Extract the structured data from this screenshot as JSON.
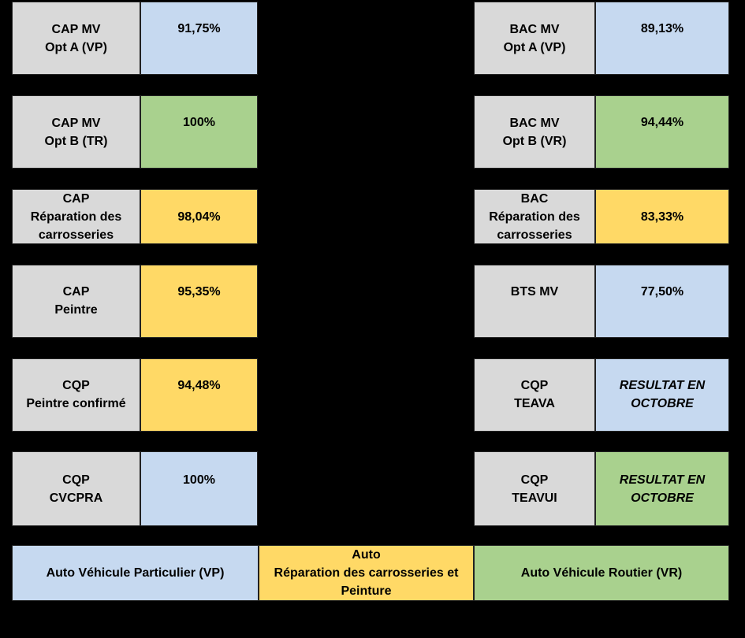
{
  "colors": {
    "vp": "#c6d9f0",
    "vr": "#a9d18e",
    "carrosserie": "#ffd966",
    "label": "#d9d9d9"
  },
  "left": [
    {
      "line1": "CAP MV",
      "line2": "Opt A (VP)",
      "line3": "",
      "value": "91,75%",
      "color": "vp"
    },
    {
      "line1": "CAP MV",
      "line2": "Opt B (TR)",
      "line3": "",
      "value": "100%",
      "color": "vr"
    },
    {
      "line1": "CAP",
      "line2": "Réparation des",
      "line3": "carrosseries",
      "value": "98,04%",
      "color": "carrosserie"
    },
    {
      "line1": "CAP",
      "line2": "Peintre",
      "line3": "",
      "value": "95,35%",
      "color": "carrosserie"
    },
    {
      "line1": "CQP",
      "line2": "Peintre confirmé",
      "line3": "",
      "value": "94,48%",
      "color": "carrosserie"
    },
    {
      "line1": "CQP",
      "line2": "CVCPRA",
      "line3": "",
      "value": "100%",
      "color": "vp"
    }
  ],
  "right": [
    {
      "line1": "BAC MV",
      "line2": "Opt A (VP)",
      "line3": "",
      "value": "89,13%",
      "value2": "",
      "color": "vp"
    },
    {
      "line1": "BAC MV",
      "line2": "Opt B (VR)",
      "line3": "",
      "value": "94,44%",
      "value2": "",
      "color": "vr"
    },
    {
      "line1": "BAC",
      "line2": "Réparation des",
      "line3": "carrosseries",
      "value": "83,33%",
      "value2": "",
      "color": "carrosserie"
    },
    {
      "line1": "BTS MV",
      "line2": "",
      "line3": "",
      "value": "77,50%",
      "value2": "",
      "color": "vp"
    },
    {
      "line1": "CQP",
      "line2": "TEAVA",
      "line3": "",
      "value": "RESULTAT EN",
      "value2": "OCTOBRE",
      "color": "vp"
    },
    {
      "line1": "CQP",
      "line2": "TEAVUI",
      "line3": "",
      "value": "RESULTAT EN",
      "value2": "OCTOBRE",
      "color": "vr"
    }
  ],
  "legend": {
    "vp": "Auto Véhicule Particulier (VP)",
    "carrosserie_line1": "Auto",
    "carrosserie_line2": "Réparation des carrosseries et",
    "carrosserie_line3": "Peinture",
    "vr": "Auto Véhicule Routier (VR)"
  }
}
